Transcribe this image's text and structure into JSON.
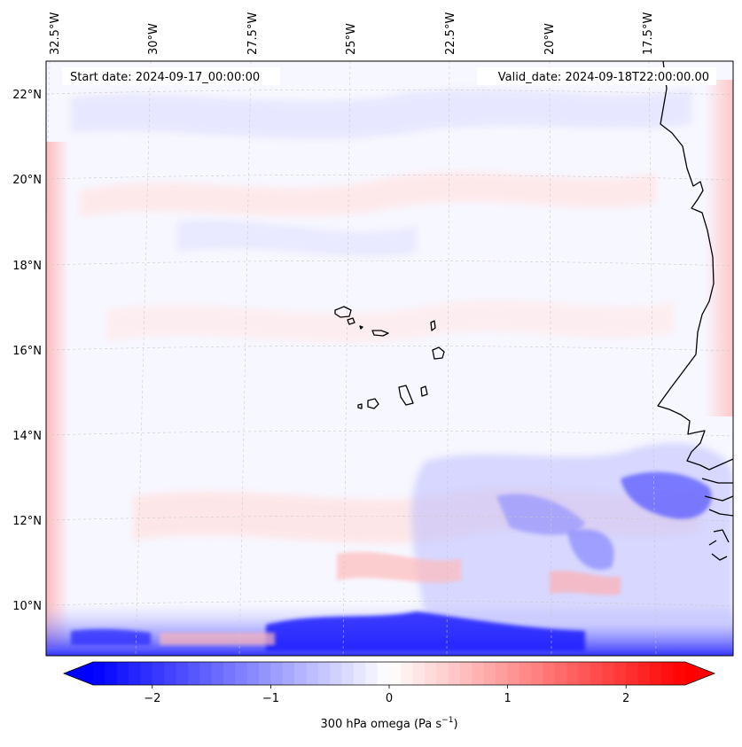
{
  "map": {
    "start_label": "Start date: 2024-09-17_00:00:00",
    "valid_label": "Valid_date: 2024-09-18T22:00:00.00",
    "lon_labels": [
      "32.5°W",
      "30°W",
      "27.5°W",
      "25°W",
      "22.5°W",
      "20°W",
      "17.5°W"
    ],
    "lat_labels": [
      "22°N",
      "20°N",
      "18°N",
      "16°N",
      "14°N",
      "12°N",
      "10°N"
    ]
  },
  "colorbar": {
    "ticks": [
      "−2",
      "−1",
      "0",
      "1",
      "2"
    ],
    "label_main": "300 hPa omega (Pa s",
    "label_sup": "−1",
    "label_end": ")",
    "vmin": -2.5,
    "vmax": 2.5,
    "low_color": "#0000ff",
    "mid_color": "#ffffff",
    "high_color": "#ff0000"
  }
}
